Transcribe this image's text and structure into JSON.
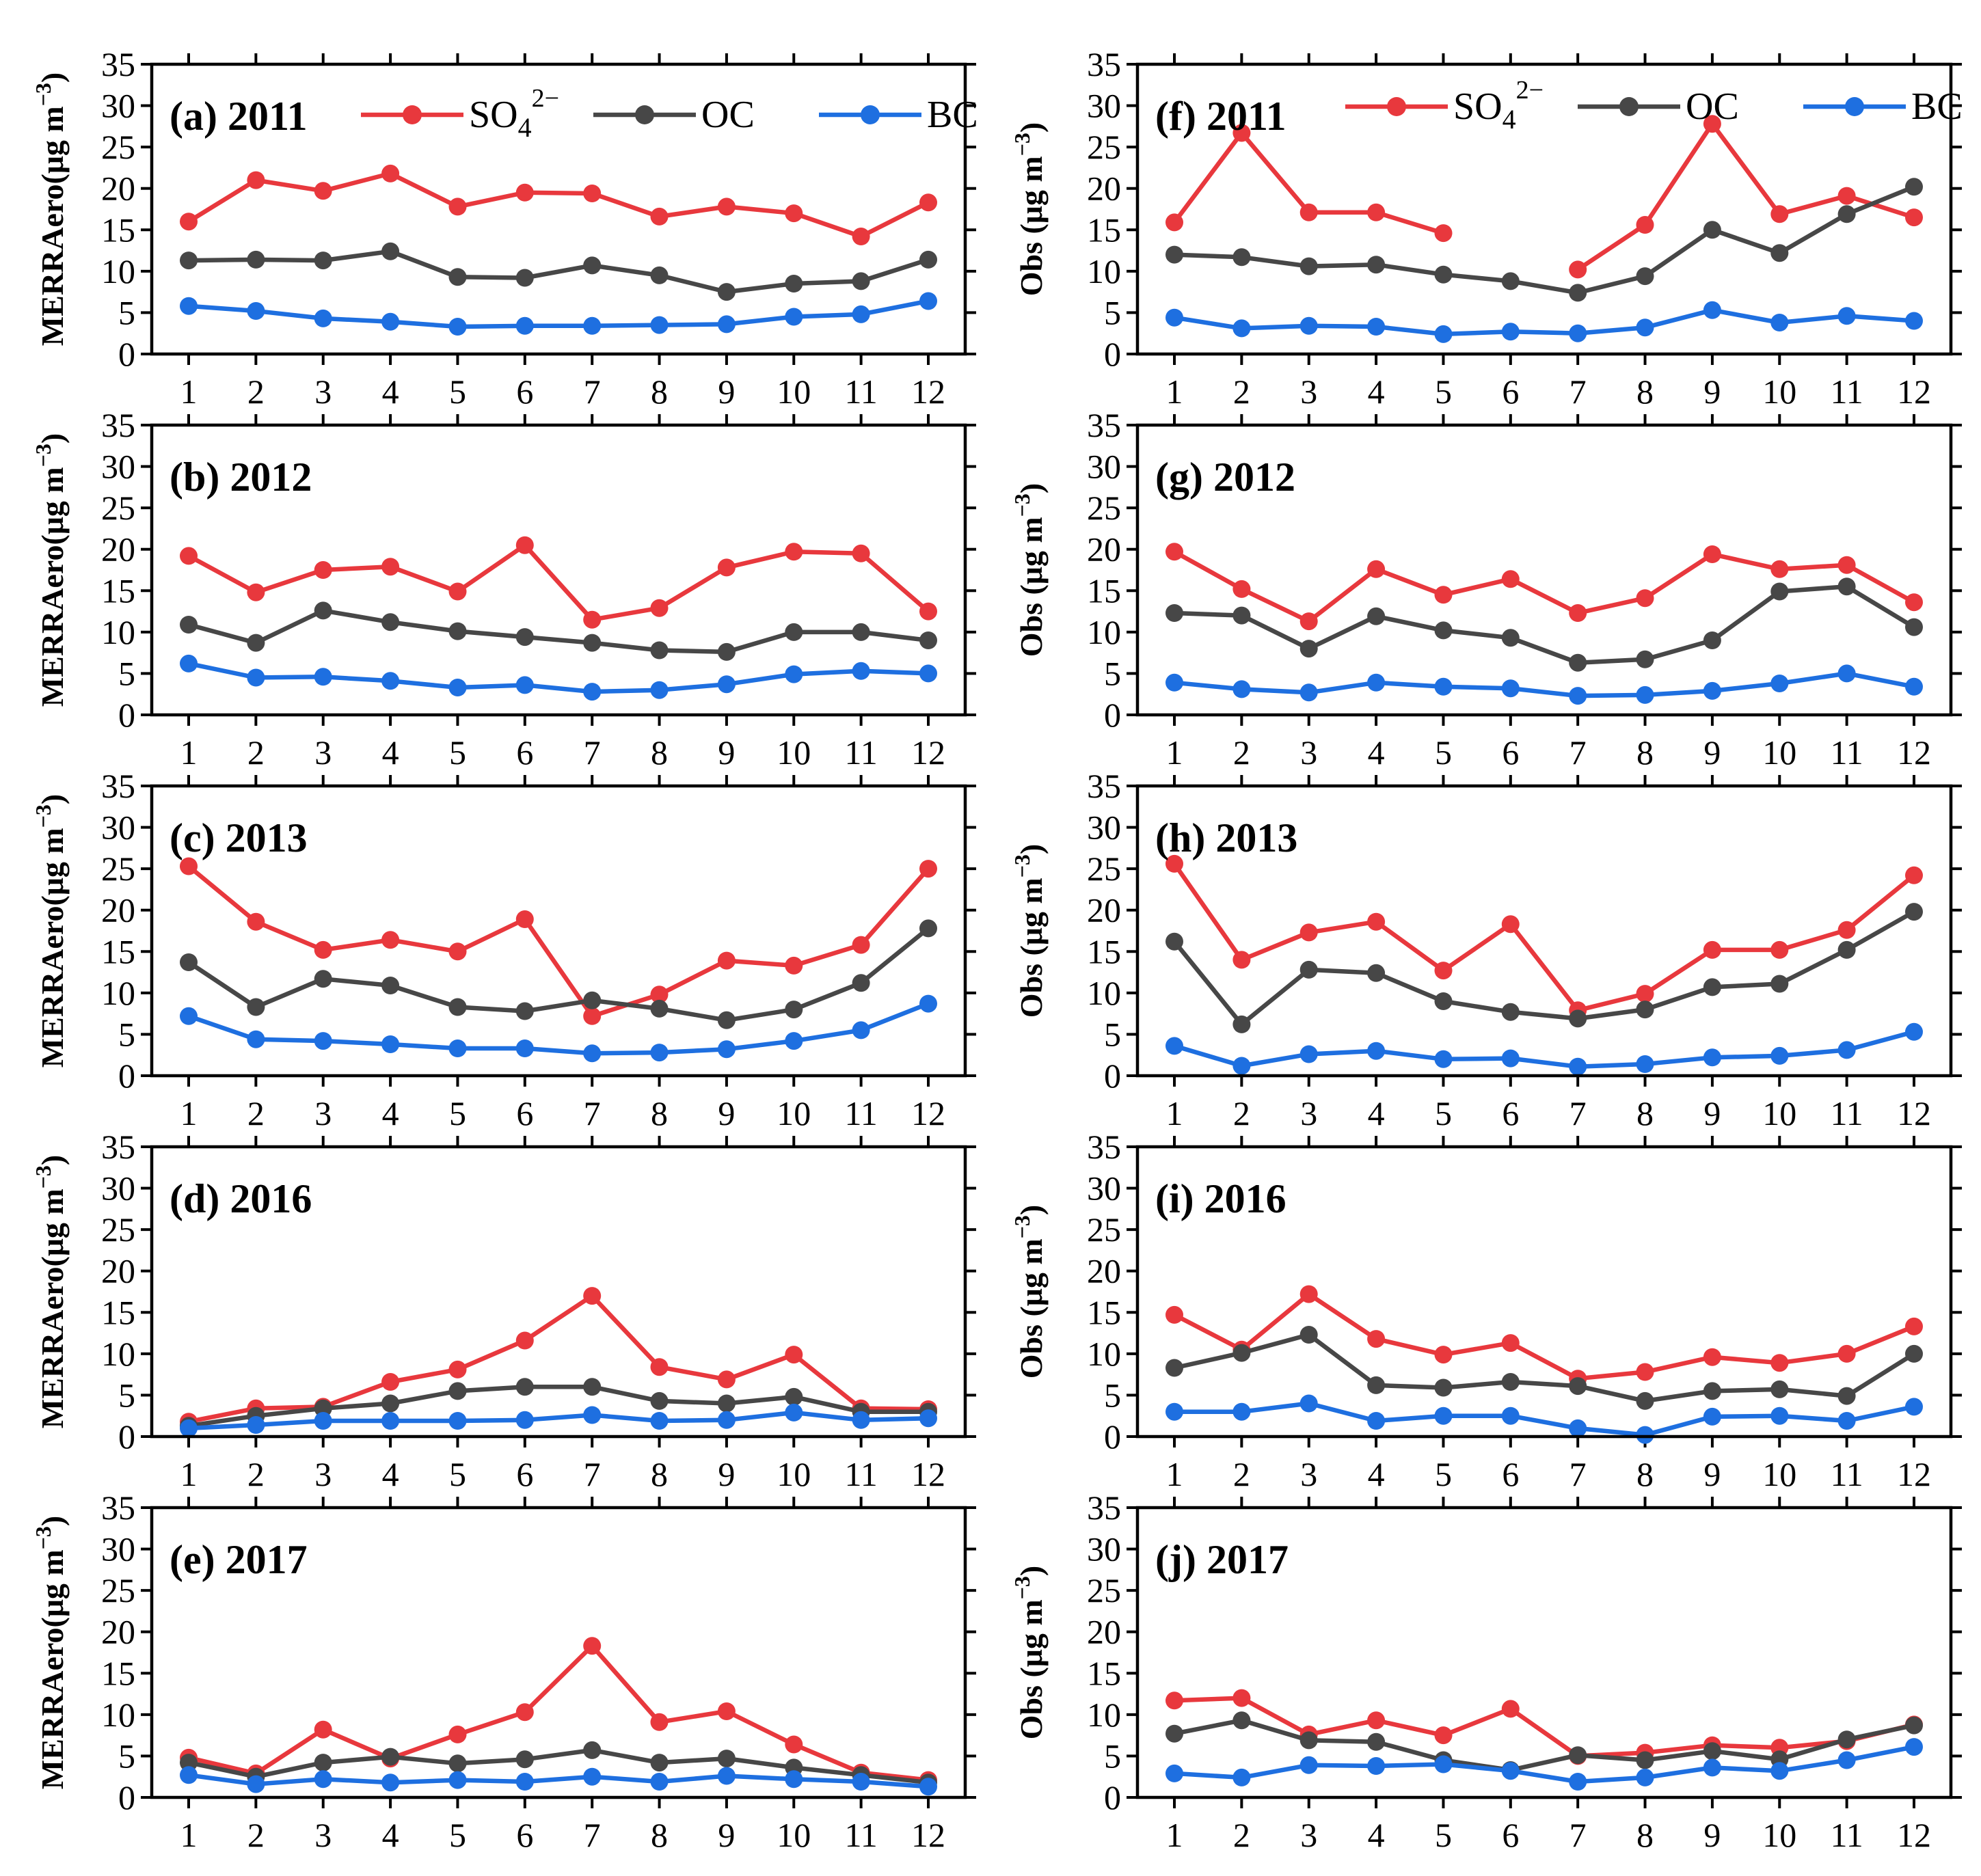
{
  "colors": {
    "SO4": "#e8383d",
    "OC": "#474747",
    "BC": "#1e6fe0"
  },
  "x_categories": [
    "1",
    "2",
    "3",
    "4",
    "5",
    "6",
    "7",
    "8",
    "9",
    "10",
    "11",
    "12"
  ],
  "y_ticks": [
    0,
    5,
    10,
    15,
    20,
    25,
    30,
    35
  ],
  "legend_left": [
    {
      "key": "SO4",
      "label": "SO",
      "sub": "4",
      "sup": "2−"
    },
    {
      "key": "OC",
      "label": "OC",
      "sub": "",
      "sup": ""
    },
    {
      "key": "BC",
      "label": "BC",
      "sub": "",
      "sup": ""
    }
  ],
  "legend_right": [
    {
      "key": "SO4",
      "label": "SO",
      "sub": "4",
      "sup": "2−"
    },
    {
      "key": "OC",
      "label": "OC",
      "sub": "",
      "sup": ""
    },
    {
      "key": "BC",
      "label": "BC",
      "sub": "",
      "sup": ""
    }
  ],
  "ylabel_left": {
    "main": "MERRAero(μg m",
    "sup": "−3",
    "end": ")"
  },
  "ylabel_right": {
    "main": "Obs (μg m",
    "sup": "−3",
    "end": ")"
  },
  "chart_data": [
    {
      "type": "line",
      "id": "a",
      "title": "(a) 2011",
      "xlabel": "",
      "ylabel": "MERRAero(μg m−3)",
      "ylim": [
        0,
        35
      ],
      "categories": [
        "1",
        "2",
        "3",
        "4",
        "5",
        "6",
        "7",
        "8",
        "9",
        "10",
        "11",
        "12"
      ],
      "series": [
        {
          "name": "SO4",
          "values": [
            16,
            21,
            19.7,
            21.8,
            17.8,
            19.5,
            19.4,
            16.6,
            17.8,
            17,
            14.2,
            18.3
          ]
        },
        {
          "name": "OC",
          "values": [
            11.3,
            11.4,
            11.3,
            12.4,
            9.3,
            9.2,
            10.7,
            9.5,
            7.5,
            8.5,
            8.8,
            11.4
          ]
        },
        {
          "name": "BC",
          "values": [
            5.8,
            5.2,
            4.3,
            3.9,
            3.3,
            3.4,
            3.4,
            3.5,
            3.6,
            4.5,
            4.8,
            6.4
          ]
        }
      ]
    },
    {
      "type": "line",
      "id": "b",
      "title": "(b) 2012",
      "xlabel": "",
      "ylabel": "MERRAero(μg m−3)",
      "ylim": [
        0,
        35
      ],
      "categories": [
        "1",
        "2",
        "3",
        "4",
        "5",
        "6",
        "7",
        "8",
        "9",
        "10",
        "11",
        "12"
      ],
      "series": [
        {
          "name": "SO4",
          "values": [
            19.2,
            14.8,
            17.5,
            17.9,
            14.9,
            20.5,
            11.5,
            12.9,
            17.8,
            19.7,
            19.5,
            12.5
          ]
        },
        {
          "name": "OC",
          "values": [
            10.9,
            8.7,
            12.6,
            11.2,
            10.1,
            9.4,
            8.7,
            7.8,
            7.6,
            10,
            10,
            9
          ]
        },
        {
          "name": "BC",
          "values": [
            6.2,
            4.5,
            4.6,
            4.1,
            3.3,
            3.6,
            2.8,
            3,
            3.7,
            4.9,
            5.3,
            5
          ]
        }
      ]
    },
    {
      "type": "line",
      "id": "c",
      "title": "(c) 2013",
      "xlabel": "",
      "ylabel": "MERRAero(μg m−3)",
      "ylim": [
        0,
        35
      ],
      "categories": [
        "1",
        "2",
        "3",
        "4",
        "5",
        "6",
        "7",
        "8",
        "9",
        "10",
        "11",
        "12"
      ],
      "series": [
        {
          "name": "SO4",
          "values": [
            25.3,
            18.6,
            15.2,
            16.4,
            15,
            18.9,
            7.2,
            9.8,
            13.9,
            13.3,
            15.8,
            25
          ]
        },
        {
          "name": "OC",
          "values": [
            13.7,
            8.3,
            11.7,
            10.9,
            8.3,
            7.8,
            9.1,
            8.1,
            6.7,
            8,
            11.2,
            17.8
          ]
        },
        {
          "name": "BC",
          "values": [
            7.2,
            4.4,
            4.2,
            3.8,
            3.3,
            3.3,
            2.7,
            2.8,
            3.2,
            4.2,
            5.5,
            8.7
          ]
        }
      ]
    },
    {
      "type": "line",
      "id": "d",
      "title": "(d) 2016",
      "xlabel": "",
      "ylabel": "MERRAero(μg m−3)",
      "ylim": [
        0,
        35
      ],
      "categories": [
        "1",
        "2",
        "3",
        "4",
        "5",
        "6",
        "7",
        "8",
        "9",
        "10",
        "11",
        "12"
      ],
      "series": [
        {
          "name": "SO4",
          "values": [
            1.8,
            3.4,
            3.6,
            6.6,
            8.1,
            11.6,
            17,
            8.4,
            6.9,
            9.9,
            3.4,
            3.3
          ]
        },
        {
          "name": "OC",
          "values": [
            1.3,
            2.5,
            3.4,
            4,
            5.5,
            6,
            6,
            4.3,
            4,
            4.8,
            3,
            3
          ]
        },
        {
          "name": "BC",
          "values": [
            1,
            1.4,
            1.9,
            1.9,
            1.9,
            2,
            2.6,
            1.9,
            2,
            2.9,
            2,
            2.2
          ]
        }
      ]
    },
    {
      "type": "line",
      "id": "e",
      "title": "(e) 2017",
      "xlabel": "",
      "ylabel": "MERRAero(μg m−3)",
      "ylim": [
        0,
        35
      ],
      "categories": [
        "1",
        "2",
        "3",
        "4",
        "5",
        "6",
        "7",
        "8",
        "9",
        "10",
        "11",
        "12"
      ],
      "series": [
        {
          "name": "SO4",
          "values": [
            4.8,
            2.9,
            8.2,
            4.7,
            7.6,
            10.3,
            18.3,
            9.1,
            10.4,
            6.4,
            3,
            2.1
          ]
        },
        {
          "name": "OC",
          "values": [
            4.2,
            2.5,
            4.2,
            4.9,
            4.1,
            4.6,
            5.7,
            4.2,
            4.7,
            3.6,
            2.7,
            1.8
          ]
        },
        {
          "name": "BC",
          "values": [
            2.7,
            1.6,
            2.2,
            1.8,
            2.1,
            1.9,
            2.5,
            1.9,
            2.6,
            2.2,
            1.9,
            1.3
          ]
        }
      ]
    },
    {
      "type": "line",
      "id": "f",
      "title": "(f) 2011",
      "xlabel": "",
      "ylabel": "Obs (μg m−3)",
      "ylim": [
        0,
        35
      ],
      "categories": [
        "1",
        "2",
        "3",
        "4",
        "5",
        "6",
        "7",
        "8",
        "9",
        "10",
        "11",
        "12"
      ],
      "series": [
        {
          "name": "SO4",
          "values": [
            15.9,
            26.7,
            17.1,
            17.1,
            14.6,
            null,
            10.2,
            15.6,
            27.8,
            16.9,
            19.1,
            16.5
          ]
        },
        {
          "name": "OC",
          "values": [
            12,
            11.7,
            10.6,
            10.8,
            9.6,
            8.8,
            7.4,
            9.4,
            15,
            12.2,
            16.9,
            20.2
          ]
        },
        {
          "name": "BC",
          "values": [
            4.4,
            3.1,
            3.4,
            3.3,
            2.4,
            2.7,
            2.5,
            3.2,
            5.3,
            3.8,
            4.6,
            4
          ]
        }
      ]
    },
    {
      "type": "line",
      "id": "g",
      "title": "(g) 2012",
      "xlabel": "",
      "ylabel": "Obs (μg m−3)",
      "ylim": [
        0,
        35
      ],
      "categories": [
        "1",
        "2",
        "3",
        "4",
        "5",
        "6",
        "7",
        "8",
        "9",
        "10",
        "11",
        "12"
      ],
      "series": [
        {
          "name": "SO4",
          "values": [
            19.7,
            15.2,
            11.3,
            17.6,
            14.5,
            16.4,
            12.3,
            14.1,
            19.4,
            17.6,
            18.1,
            13.6
          ]
        },
        {
          "name": "OC",
          "values": [
            12.3,
            12,
            8,
            11.9,
            10.2,
            9.3,
            6.3,
            6.7,
            9,
            14.9,
            15.5,
            10.6
          ]
        },
        {
          "name": "BC",
          "values": [
            3.9,
            3.1,
            2.7,
            3.9,
            3.4,
            3.2,
            2.3,
            2.4,
            2.9,
            3.8,
            5,
            3.4
          ]
        }
      ]
    },
    {
      "type": "line",
      "id": "h",
      "title": "(h) 2013",
      "xlabel": "",
      "ylabel": "Obs (μg m−3)",
      "ylim": [
        0,
        35
      ],
      "categories": [
        "1",
        "2",
        "3",
        "4",
        "5",
        "6",
        "7",
        "8",
        "9",
        "10",
        "11",
        "12"
      ],
      "series": [
        {
          "name": "SO4",
          "values": [
            25.6,
            14,
            17.3,
            18.6,
            12.7,
            18.3,
            7.9,
            9.9,
            15.2,
            15.2,
            17.6,
            24.2
          ]
        },
        {
          "name": "OC",
          "values": [
            16.2,
            6.2,
            12.8,
            12.4,
            9,
            7.7,
            6.9,
            8,
            10.7,
            11.1,
            15.2,
            19.8
          ]
        },
        {
          "name": "BC",
          "values": [
            3.6,
            1.2,
            2.6,
            3,
            2,
            2.1,
            1.1,
            1.4,
            2.2,
            2.4,
            3.1,
            5.3
          ]
        }
      ]
    },
    {
      "type": "line",
      "id": "i",
      "title": "(i) 2016",
      "xlabel": "",
      "ylabel": "Obs (μg m−3)",
      "ylim": [
        0,
        35
      ],
      "categories": [
        "1",
        "2",
        "3",
        "4",
        "5",
        "6",
        "7",
        "8",
        "9",
        "10",
        "11",
        "12"
      ],
      "series": [
        {
          "name": "SO4",
          "values": [
            14.7,
            10.5,
            17.2,
            11.8,
            9.9,
            11.3,
            7,
            7.8,
            9.6,
            8.9,
            10,
            13.3
          ]
        },
        {
          "name": "OC",
          "values": [
            8.3,
            10.1,
            12.3,
            6.2,
            5.9,
            6.6,
            6.1,
            4.3,
            5.5,
            5.7,
            4.9,
            10
          ]
        },
        {
          "name": "BC",
          "values": [
            3,
            3,
            4,
            1.9,
            2.5,
            2.5,
            1,
            0.2,
            2.4,
            2.5,
            1.9,
            3.6
          ]
        }
      ]
    },
    {
      "type": "line",
      "id": "j",
      "title": "(j) 2017",
      "xlabel": "",
      "ylabel": "Obs (μg m−3)",
      "ylim": [
        0,
        35
      ],
      "categories": [
        "1",
        "2",
        "3",
        "4",
        "5",
        "6",
        "7",
        "8",
        "9",
        "10",
        "11",
        "12"
      ],
      "series": [
        {
          "name": "SO4",
          "values": [
            11.7,
            12,
            7.6,
            9.3,
            7.5,
            10.7,
            5,
            5.4,
            6.3,
            6,
            6.8,
            8.8
          ]
        },
        {
          "name": "OC",
          "values": [
            7.7,
            9.3,
            6.9,
            6.7,
            4.5,
            3.3,
            5.1,
            4.5,
            5.6,
            4.6,
            7,
            8.7
          ]
        },
        {
          "name": "BC",
          "values": [
            2.9,
            2.4,
            3.9,
            3.8,
            4,
            3.2,
            1.9,
            2.4,
            3.6,
            3.2,
            4.5,
            6.1
          ]
        }
      ]
    }
  ]
}
